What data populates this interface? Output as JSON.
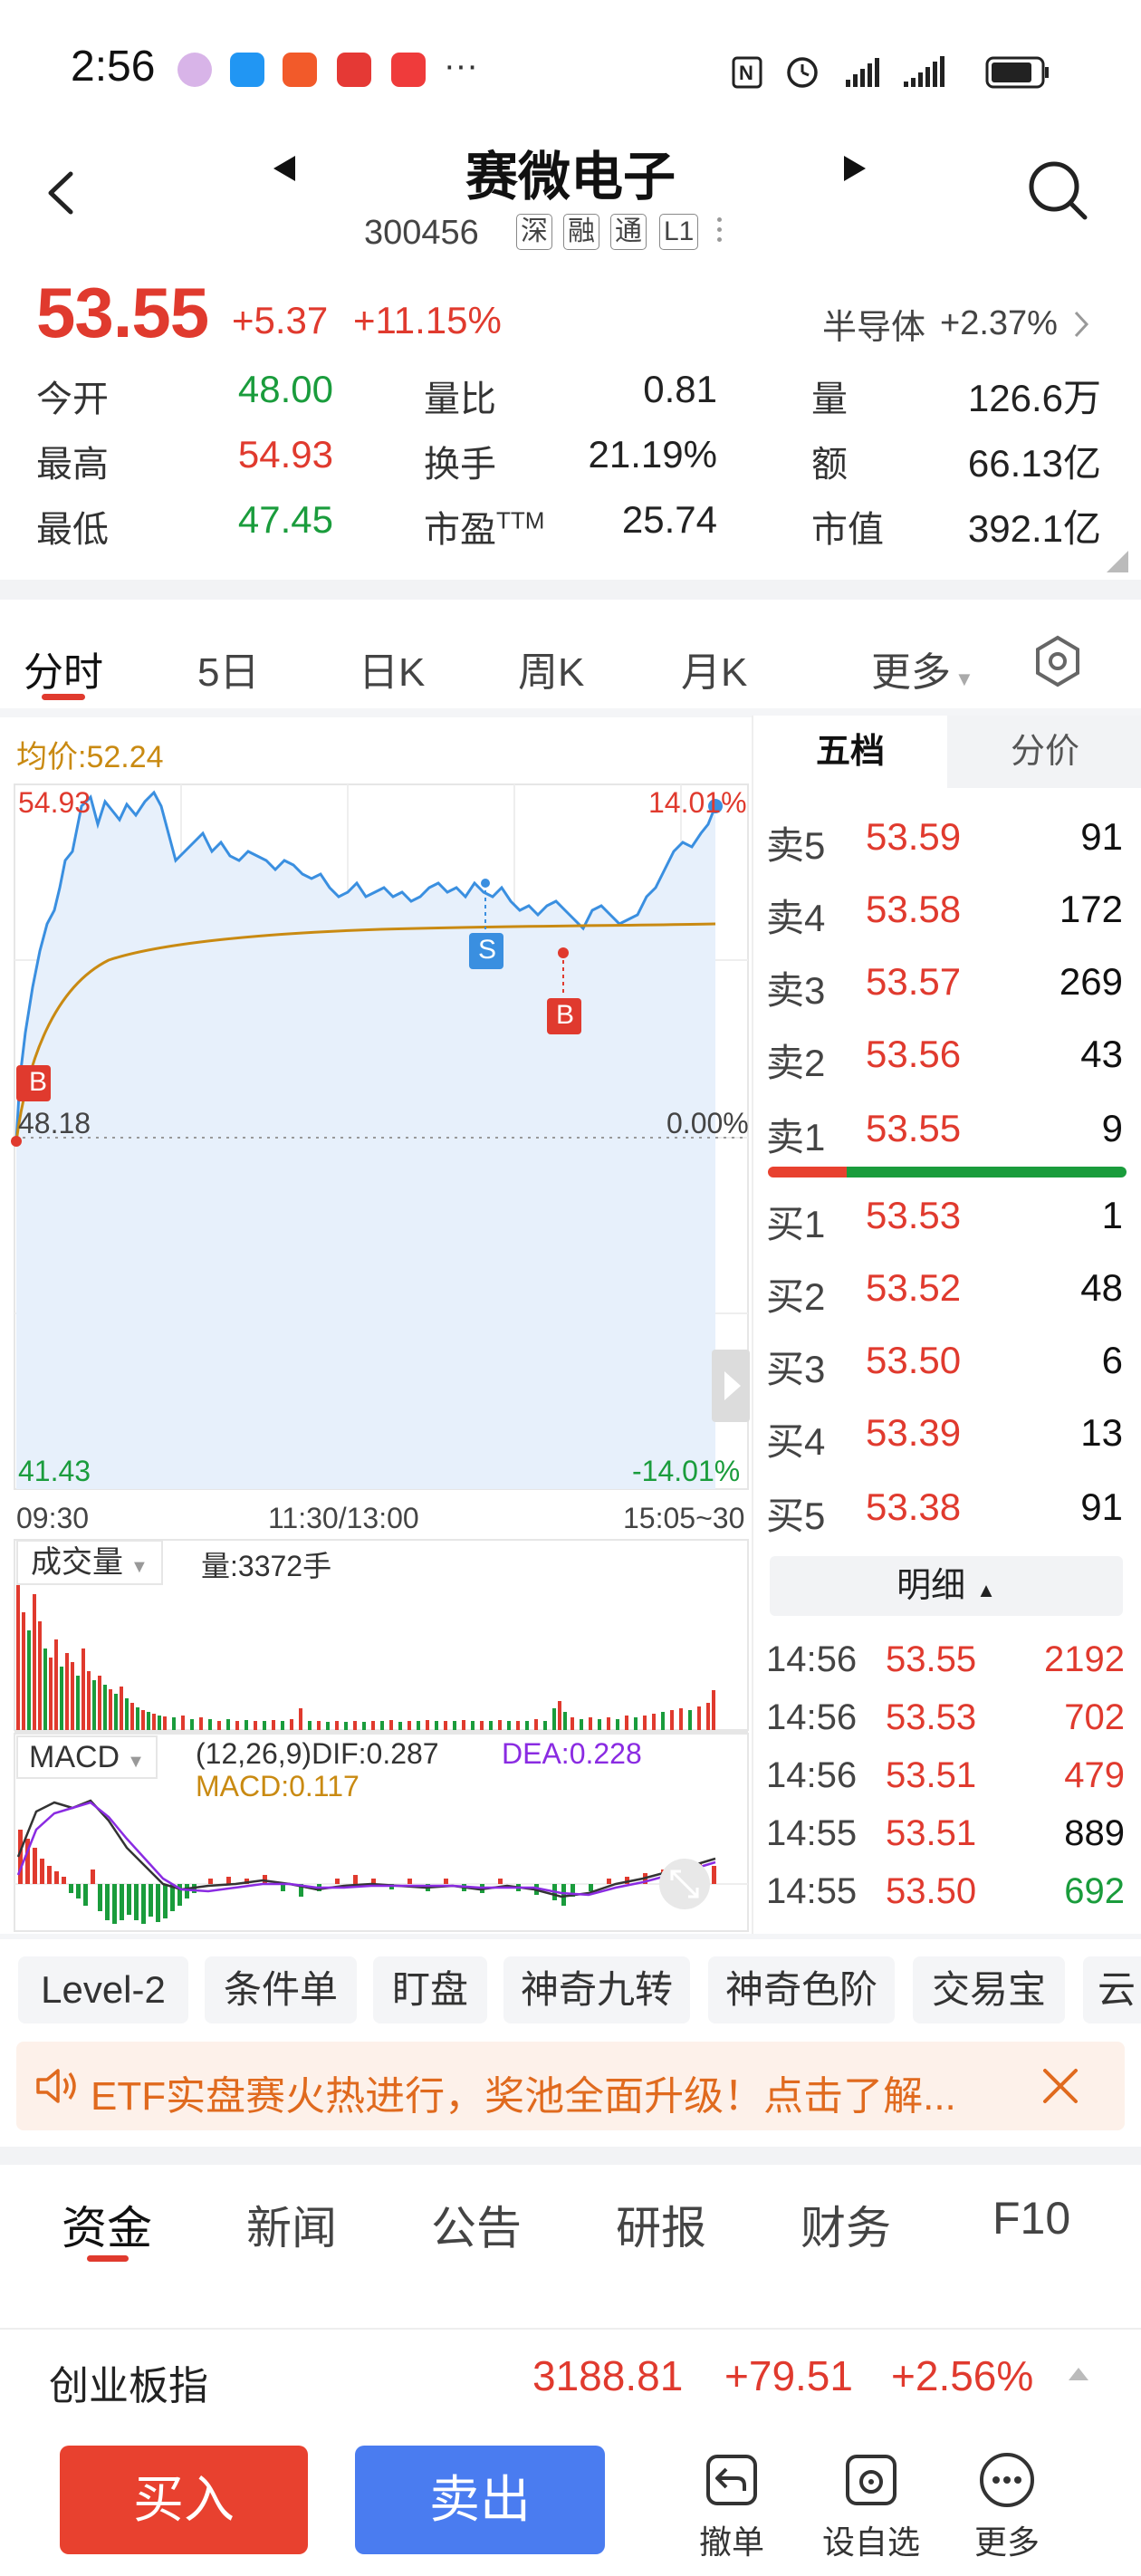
{
  "status": {
    "time": "2:56",
    "dots": "···"
  },
  "header": {
    "title": "赛微电子",
    "code": "300456",
    "tags": [
      "深",
      "融",
      "通",
      "L1"
    ]
  },
  "quote": {
    "price": "53.55",
    "change": "+5.37",
    "change_pct": "+11.15%",
    "sector": "半导体",
    "sector_pct": "+2.37%",
    "stats": [
      {
        "label": "今开",
        "value": "48.00",
        "color": "green"
      },
      {
        "label": "量比",
        "value": "0.81",
        "color": "black"
      },
      {
        "label": "量",
        "value": "126.6万",
        "color": "black"
      },
      {
        "label": "最高",
        "value": "54.93",
        "color": "red"
      },
      {
        "label": "换手",
        "value": "21.19%",
        "color": "black"
      },
      {
        "label": "额",
        "value": "66.13亿",
        "color": "black"
      },
      {
        "label": "最低",
        "value": "47.45",
        "color": "green"
      },
      {
        "label": "市盈",
        "label_sup": "TTM",
        "value": "25.74",
        "color": "black"
      },
      {
        "label": "市值",
        "value": "392.1亿",
        "color": "black"
      }
    ]
  },
  "tabs": [
    "分时",
    "5日",
    "日K",
    "周K",
    "月K",
    "更多"
  ],
  "chart": {
    "avg_label": "均价:52.24",
    "y_top_left": "54.93",
    "y_top_right": "14.01%",
    "y_mid_left": "48.18",
    "y_mid_right": "0.00%",
    "y_bot_left": "41.43",
    "y_bot_right": "-14.01%",
    "time_start": "09:30",
    "time_mid": "11:30/13:00",
    "time_end": "15:05~30",
    "marker_b1": "B",
    "marker_s": "S",
    "marker_b2": "B",
    "volume_selector": "成交量",
    "volume_label": "量:3372手",
    "macd_selector": "MACD",
    "macd_params": "(12,26,9)DIF:0.287",
    "macd_dea": "DEA:0.228",
    "macd_value": "MACD:0.117"
  },
  "order_book": {
    "tab_active": "五档",
    "tab_other": "分价",
    "asks": [
      {
        "label": "卖5",
        "price": "53.59",
        "vol": "91"
      },
      {
        "label": "卖4",
        "price": "53.58",
        "vol": "172"
      },
      {
        "label": "卖3",
        "price": "53.57",
        "vol": "269"
      },
      {
        "label": "卖2",
        "price": "53.56",
        "vol": "43"
      },
      {
        "label": "卖1",
        "price": "53.55",
        "vol": "9"
      }
    ],
    "bids": [
      {
        "label": "买1",
        "price": "53.53",
        "vol": "1"
      },
      {
        "label": "买2",
        "price": "53.52",
        "vol": "48"
      },
      {
        "label": "买3",
        "price": "53.50",
        "vol": "6"
      },
      {
        "label": "买4",
        "price": "53.39",
        "vol": "13"
      },
      {
        "label": "买5",
        "price": "53.38",
        "vol": "91"
      }
    ],
    "detail_label": "明细",
    "ticks": [
      {
        "time": "14:56",
        "price": "53.55",
        "vol": "2192",
        "color": "red"
      },
      {
        "time": "14:56",
        "price": "53.53",
        "vol": "702",
        "color": "red"
      },
      {
        "time": "14:56",
        "price": "53.51",
        "vol": "479",
        "color": "red"
      },
      {
        "time": "14:55",
        "price": "53.51",
        "vol": "889",
        "color": "black"
      },
      {
        "time": "14:55",
        "price": "53.50",
        "vol": "692",
        "color": "green"
      }
    ]
  },
  "chips": [
    "Level-2",
    "条件单",
    "盯盘",
    "神奇九转",
    "神奇色阶",
    "交易宝",
    "云"
  ],
  "banner": {
    "text": "ETF实盘赛火热进行，奖池全面升级！点击了解..."
  },
  "bottom_tabs": [
    "资金",
    "新闻",
    "公告",
    "研报",
    "财务",
    "F10"
  ],
  "index_bar": {
    "name": "创业板指",
    "value": "3188.81",
    "change": "+79.51",
    "pct": "+2.56%"
  },
  "actions": {
    "buy": "买入",
    "sell": "卖出",
    "cancel": "撤单",
    "watch": "设自选",
    "more": "更多"
  }
}
